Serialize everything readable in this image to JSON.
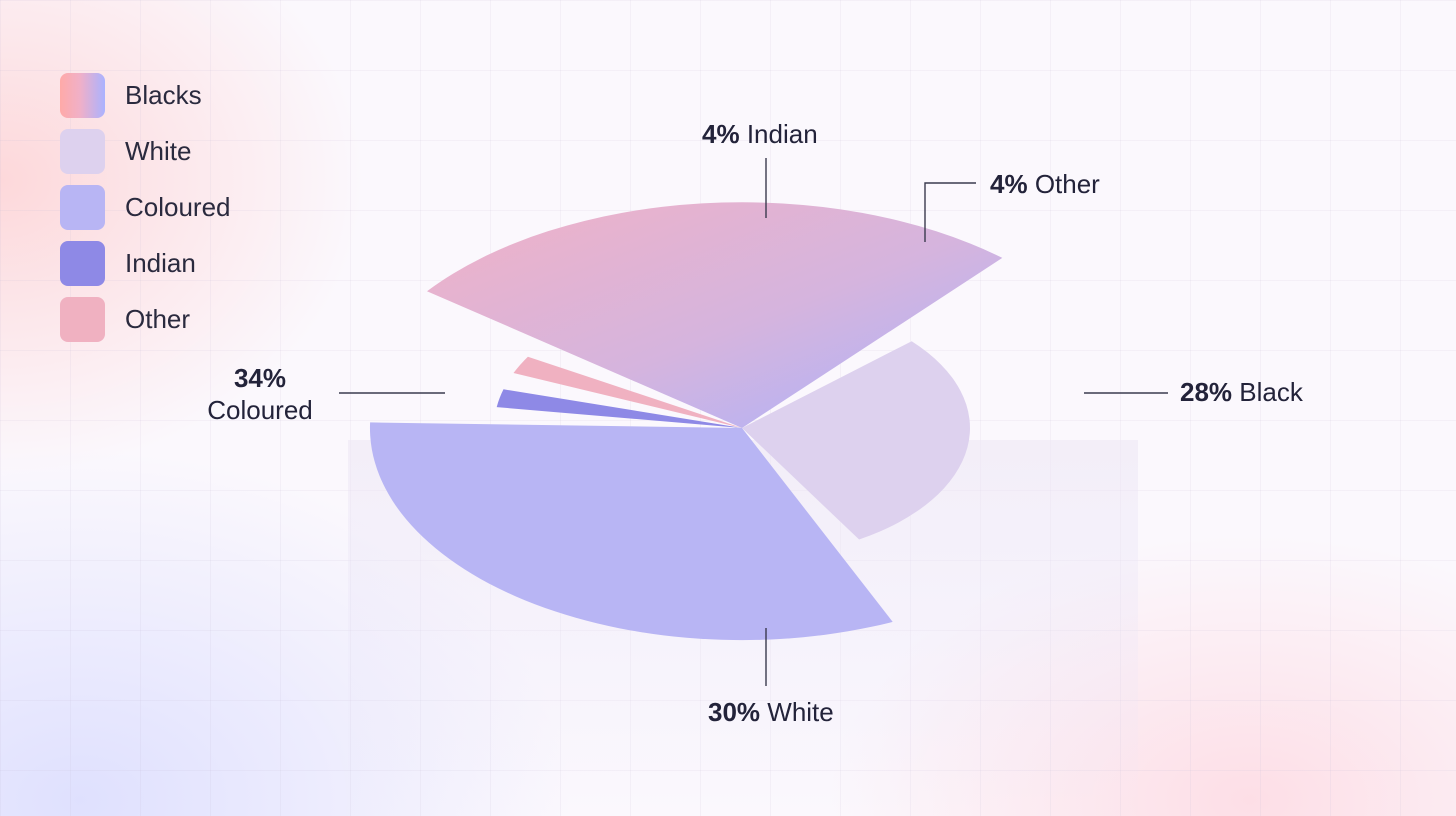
{
  "legend": [
    {
      "label": "Blacks",
      "color": "#f2b0c8"
    },
    {
      "label": "White",
      "color": "#ddd1ee"
    },
    {
      "label": "Coloured",
      "color": "#b8b5f4"
    },
    {
      "label": "Indian",
      "color": "#8e89e6"
    },
    {
      "label": "Other",
      "color": "#f0b1c1"
    }
  ],
  "chart_data": {
    "type": "pie",
    "slices": [
      {
        "category": "Indian",
        "pct": "4%",
        "name": "Indian",
        "value": 4,
        "color": "#8e89e6"
      },
      {
        "category": "Other",
        "pct": "4%",
        "name": "Other",
        "value": 4,
        "color": "#f0b1c1"
      },
      {
        "category": "Blacks",
        "pct": "28%",
        "name": "Black",
        "value": 28,
        "color": "#e7b2cc"
      },
      {
        "category": "White",
        "pct": "30%",
        "name": "White",
        "value": 30,
        "color": "#ddd1ee"
      },
      {
        "category": "Coloured",
        "pct": "34%",
        "name": "Coloured",
        "value": 34,
        "color": "#b8b5f4"
      }
    ]
  }
}
